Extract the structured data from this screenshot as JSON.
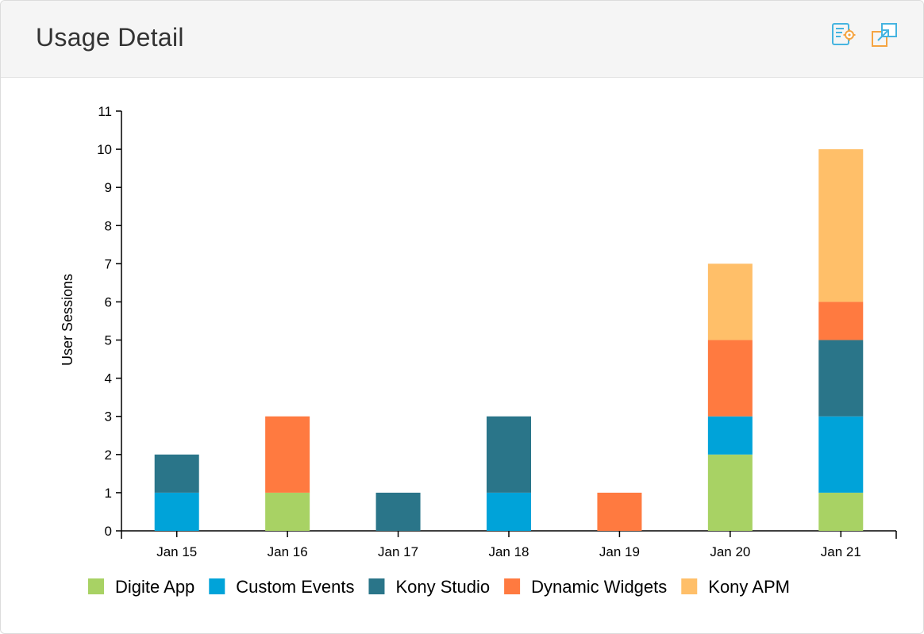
{
  "panel": {
    "title": "Usage Detail",
    "icons": [
      "settings-report-icon",
      "popout-icon"
    ]
  },
  "chart_data": {
    "type": "bar",
    "stacked": true,
    "title": "",
    "xlabel": "",
    "ylabel": "User Sessions",
    "ylim": [
      0,
      11
    ],
    "yticks": [
      0,
      1,
      2,
      3,
      4,
      5,
      6,
      7,
      8,
      9,
      10,
      11
    ],
    "categories": [
      "Jan 15",
      "Jan 16",
      "Jan 17",
      "Jan 18",
      "Jan 19",
      "Jan 20",
      "Jan 21"
    ],
    "series": [
      {
        "name": "Digite App",
        "color": "#a8d264",
        "values": [
          0,
          1,
          0,
          0,
          0,
          2,
          1
        ]
      },
      {
        "name": "Custom Events",
        "color": "#00a3d9",
        "values": [
          1,
          0,
          0,
          1,
          0,
          1,
          2
        ]
      },
      {
        "name": "Kony Studio",
        "color": "#2a7589",
        "values": [
          1,
          0,
          1,
          2,
          0,
          0,
          2
        ]
      },
      {
        "name": "Dynamic Widgets",
        "color": "#ff7a40",
        "values": [
          0,
          2,
          0,
          0,
          1,
          2,
          1
        ]
      },
      {
        "name": "Kony APM",
        "color": "#ffbf69",
        "values": [
          0,
          0,
          0,
          0,
          0,
          2,
          4
        ]
      }
    ],
    "legend": "bottom",
    "grid": false
  }
}
